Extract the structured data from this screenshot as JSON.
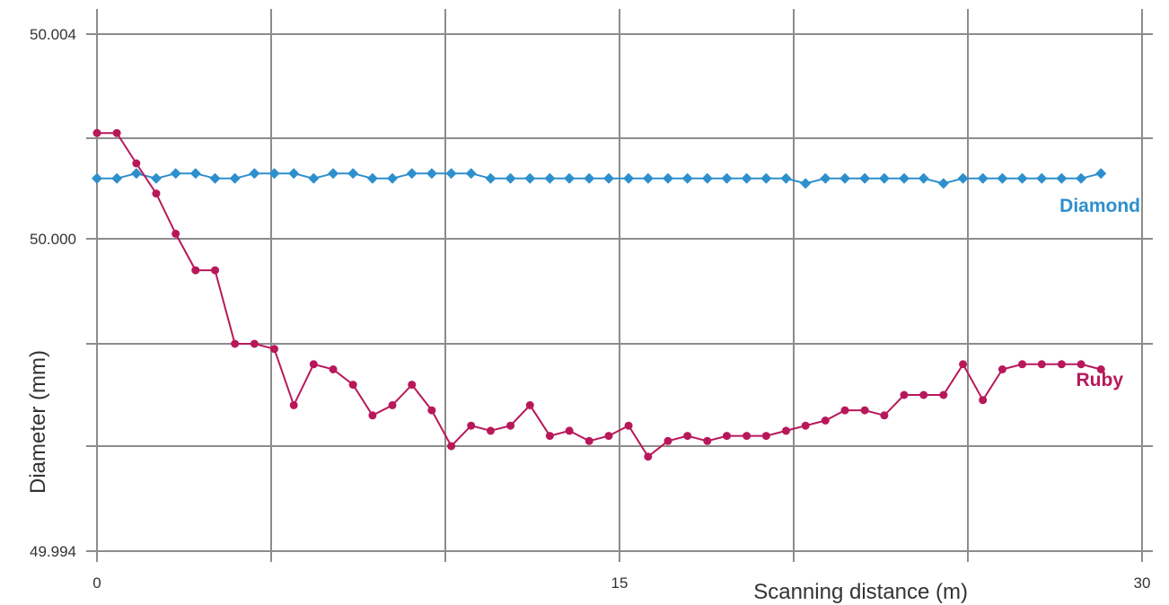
{
  "chart_data": {
    "type": "line",
    "title": "",
    "xlabel": "Scanning distance (m)",
    "ylabel": "Diameter (mm)",
    "xlim": [
      0,
      30
    ],
    "ylim": [
      49.994,
      50.004
    ],
    "x_ticks": [
      {
        "value": 0,
        "label": "0"
      },
      {
        "value": 5,
        "label": ""
      },
      {
        "value": 10,
        "label": ""
      },
      {
        "value": 15,
        "label": "15"
      },
      {
        "value": 20,
        "label": ""
      },
      {
        "value": 25,
        "label": ""
      },
      {
        "value": 30,
        "label": "30"
      }
    ],
    "y_ticks": [
      {
        "value": 49.994,
        "label": "49.994"
      },
      {
        "value": 49.997,
        "label": ""
      },
      {
        "value": 49.999,
        "label": ""
      },
      {
        "value": 50.0,
        "label": "50.000"
      },
      {
        "value": 50.002,
        "label": ""
      },
      {
        "value": 50.004,
        "label": "50.004"
      }
    ],
    "grid": true,
    "legend": "inline labels at right end of each series",
    "x": [
      0.0,
      0.57,
      1.13,
      1.7,
      2.26,
      2.83,
      3.39,
      3.96,
      4.52,
      5.09,
      5.65,
      6.22,
      6.78,
      7.35,
      7.91,
      8.48,
      9.04,
      9.61,
      10.17,
      10.74,
      11.3,
      11.87,
      12.43,
      13.0,
      13.56,
      14.13,
      14.69,
      15.26,
      15.82,
      16.39,
      16.95,
      17.52,
      18.08,
      18.65,
      19.21,
      19.78,
      20.34,
      20.91,
      21.47,
      22.04,
      22.6,
      23.17,
      23.73,
      24.3,
      24.86,
      25.43,
      25.99,
      26.56,
      27.12,
      27.69,
      28.25,
      28.82
    ],
    "series": [
      {
        "name": "Diamond",
        "color": "#2e8fcd",
        "marker": "diamond",
        "values": [
          50.0012,
          50.0012,
          50.0013,
          50.0012,
          50.0013,
          50.0013,
          50.0012,
          50.0012,
          50.0013,
          50.0013,
          50.0013,
          50.0012,
          50.0013,
          50.0013,
          50.0012,
          50.0012,
          50.0013,
          50.0013,
          50.0013,
          50.0013,
          50.0012,
          50.0012,
          50.0012,
          50.0012,
          50.0012,
          50.0012,
          50.0012,
          50.0012,
          50.0012,
          50.0012,
          50.0012,
          50.0012,
          50.0012,
          50.0012,
          50.0012,
          50.0012,
          50.0011,
          50.0012,
          50.0012,
          50.0012,
          50.0012,
          50.0012,
          50.0012,
          50.0011,
          50.0012,
          50.0012,
          50.0012,
          50.0012,
          50.0012,
          50.0012,
          50.0012,
          50.0013
        ]
      },
      {
        "name": "Ruby",
        "color": "#b8185a",
        "marker": "circle",
        "values": [
          50.0021,
          50.0021,
          50.0015,
          50.0009,
          50.0001,
          49.9997,
          49.9997,
          49.999,
          49.999,
          49.9989,
          49.9978,
          49.9986,
          49.9985,
          49.9982,
          49.9976,
          49.9978,
          49.9982,
          49.9977,
          49.997,
          49.9974,
          49.9973,
          49.9974,
          49.9978,
          49.9972,
          49.9973,
          49.9971,
          49.9972,
          49.9974,
          49.9967,
          49.9971,
          49.9972,
          49.9971,
          49.9972,
          49.9972,
          49.9972,
          49.9973,
          49.9974,
          49.9975,
          49.9977,
          49.9977,
          49.9976,
          49.998,
          49.998,
          49.998,
          49.9986,
          49.9979,
          49.9985,
          49.9986,
          49.9986,
          49.9986,
          49.9986,
          49.9985
        ]
      }
    ]
  }
}
